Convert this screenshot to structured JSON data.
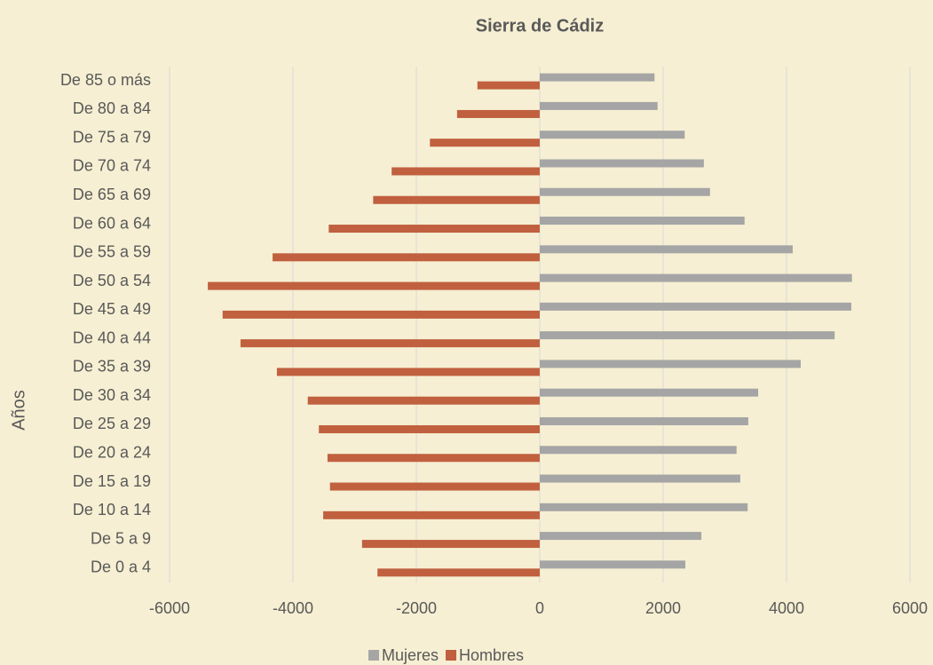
{
  "chart_data": {
    "type": "bar",
    "orientation": "horizontal",
    "title": "Sierra de Cádiz",
    "y_label": "Años",
    "categories": [
      "De 0 a 4",
      "De 5 a 9",
      "De 10 a 14",
      "De 15 a 19",
      "De 20 a 24",
      "De 25 a 29",
      "De 30 a 34",
      "De 35 a 39",
      "De 40 a 44",
      "De 45 a 49",
      "De 50 a 54",
      "De 55 a 59",
      "De 60 a 64",
      "De 65 a 69",
      "De 70 a 74",
      "De 75 a 79",
      "De 80 a 84",
      "De 85 o más"
    ],
    "series": [
      {
        "name": "Mujeres",
        "color": "#a5a5a5",
        "values": [
          2360,
          2620,
          3370,
          3250,
          3190,
          3380,
          3540,
          4230,
          4780,
          5050,
          5060,
          4100,
          3320,
          2760,
          2660,
          2350,
          1910,
          1860
        ]
      },
      {
        "name": "Hombres",
        "color": "#c0603f",
        "values": [
          -2630,
          -2880,
          -3510,
          -3400,
          -3440,
          -3580,
          -3760,
          -4260,
          -4850,
          -5140,
          -5380,
          -4330,
          -3420,
          -2700,
          -2400,
          -1780,
          -1340,
          -1010
        ]
      }
    ],
    "xlim": [
      -6000,
      6000
    ],
    "xticks": [
      -6000,
      -4000,
      -2000,
      0,
      2000,
      4000,
      6000
    ],
    "grid": true,
    "legend": "bottom"
  }
}
